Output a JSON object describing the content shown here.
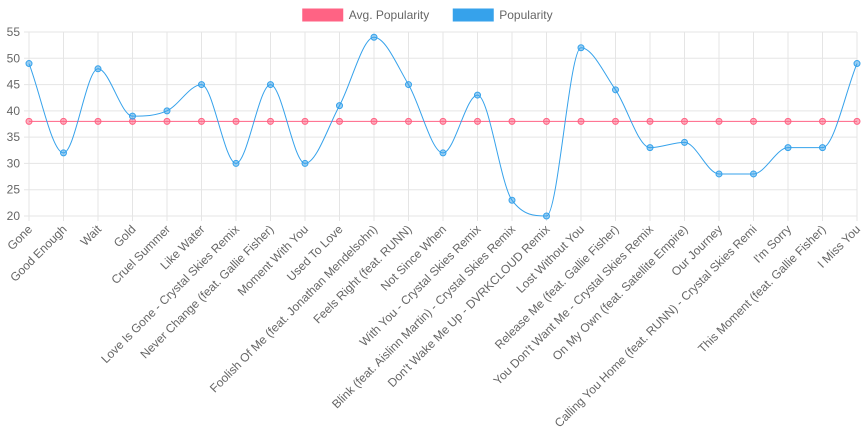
{
  "chart_data": {
    "type": "line",
    "categories": [
      "Gone",
      "Good Enough",
      "Wait",
      "Gold",
      "Cruel Summer",
      "Like Water",
      "Love Is Gone - Crystal Skies Remix",
      "Never Change (feat. Gallie Fisher)",
      "Moment With You",
      "Used To Love",
      "Foolish Of Me (feat. Jonathan Mendelsohn)",
      "Feels Right (feat. RUNN)",
      "Not Since When",
      "With You - Crystal Skies Remix",
      "Blink (feat. Aislinn Martin) - Crystal Skies Remix",
      "Don't Wake Me Up - DVRKCLOUD Remix",
      "Lost Without You",
      "Release Me (feat. Gallie Fisher)",
      "You Don't Want Me - Crystal Skies Remix",
      "On My Own (feat. Satellite Empire)",
      "Our Journey",
      "Calling You Home (feat. RUNN) - Crystal Skies Remi",
      "I'm Sorry",
      "This Moment (feat. Gallie Fisher)",
      "I Miss You"
    ],
    "series": [
      {
        "name": "Avg. Popularity",
        "color": "#ff6384",
        "values": [
          38,
          38,
          38,
          38,
          38,
          38,
          38,
          38,
          38,
          38,
          38,
          38,
          38,
          38,
          38,
          38,
          38,
          38,
          38,
          38,
          38,
          38,
          38,
          38,
          38
        ]
      },
      {
        "name": "Popularity",
        "color": "#36a2eb",
        "values": [
          49,
          32,
          48,
          39,
          40,
          45,
          30,
          45,
          30,
          41,
          54,
          45,
          32,
          43,
          23,
          20,
          52,
          44,
          33,
          34,
          28,
          28,
          33,
          33,
          49
        ]
      }
    ],
    "yticks": [
      20,
      25,
      30,
      35,
      40,
      45,
      50,
      55
    ],
    "ylim": [
      20,
      55
    ],
    "grid": true,
    "legend_position": "top-center",
    "title": "",
    "xlabel": "",
    "ylabel": ""
  }
}
